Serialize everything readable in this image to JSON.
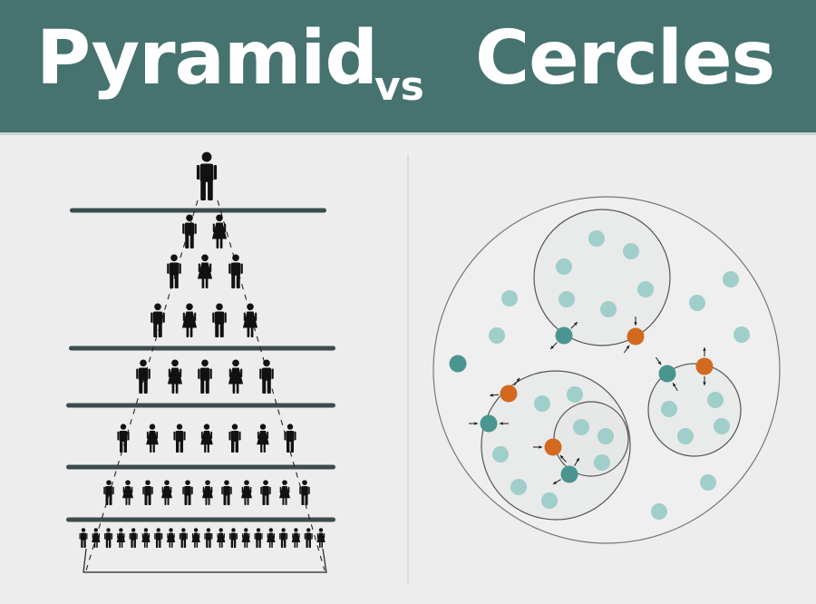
{
  "title": {
    "left": "Pyramid",
    "middle": "vs",
    "right": "Cercles"
  },
  "colors": {
    "banner": "#467370",
    "background": "#ecedec",
    "figure": "#111111",
    "bar": "#3c4c4c",
    "member": "#9fcecb",
    "connector_teal": "#4a9590",
    "connector_orange": "#d2691e",
    "circle_fill": "#e9eaea",
    "circle_stroke": "#555555"
  },
  "pyramid": {
    "levels": [
      {
        "figures": [
          "man"
        ]
      },
      {
        "figures": [
          "man",
          "woman"
        ]
      },
      {
        "figures": [
          "man",
          "woman",
          "man"
        ]
      },
      {
        "figures": [
          "man",
          "woman",
          "man",
          "woman"
        ]
      },
      {
        "figures": [
          "man",
          "woman",
          "man",
          "woman",
          "man"
        ]
      },
      {
        "figures": [
          "man",
          "woman",
          "man",
          "woman",
          "man",
          "woman",
          "man"
        ]
      },
      {
        "figures": [
          "man",
          "woman",
          "man",
          "woman",
          "man",
          "woman",
          "man",
          "woman",
          "man",
          "woman",
          "man"
        ]
      },
      {
        "figures": [
          "man",
          "woman",
          "man",
          "woman",
          "man",
          "woman",
          "man",
          "woman",
          "man",
          "woman",
          "man",
          "woman",
          "man",
          "woman",
          "man",
          "woman",
          "man",
          "woman",
          "man",
          "woman"
        ]
      }
    ]
  },
  "circles": {
    "connectors": [
      {
        "color": "teal",
        "arrows": "out"
      },
      {
        "color": "orange",
        "arrows": "in"
      },
      {
        "color": "teal",
        "arrows": "in"
      },
      {
        "color": "orange",
        "arrows": "out"
      },
      {
        "color": "orange",
        "arrows": "out"
      },
      {
        "color": "teal",
        "arrows": "in"
      },
      {
        "color": "orange",
        "arrows": "in"
      },
      {
        "color": "teal",
        "arrows": "out"
      },
      {
        "color": "teal",
        "arrows": "none"
      }
    ]
  }
}
